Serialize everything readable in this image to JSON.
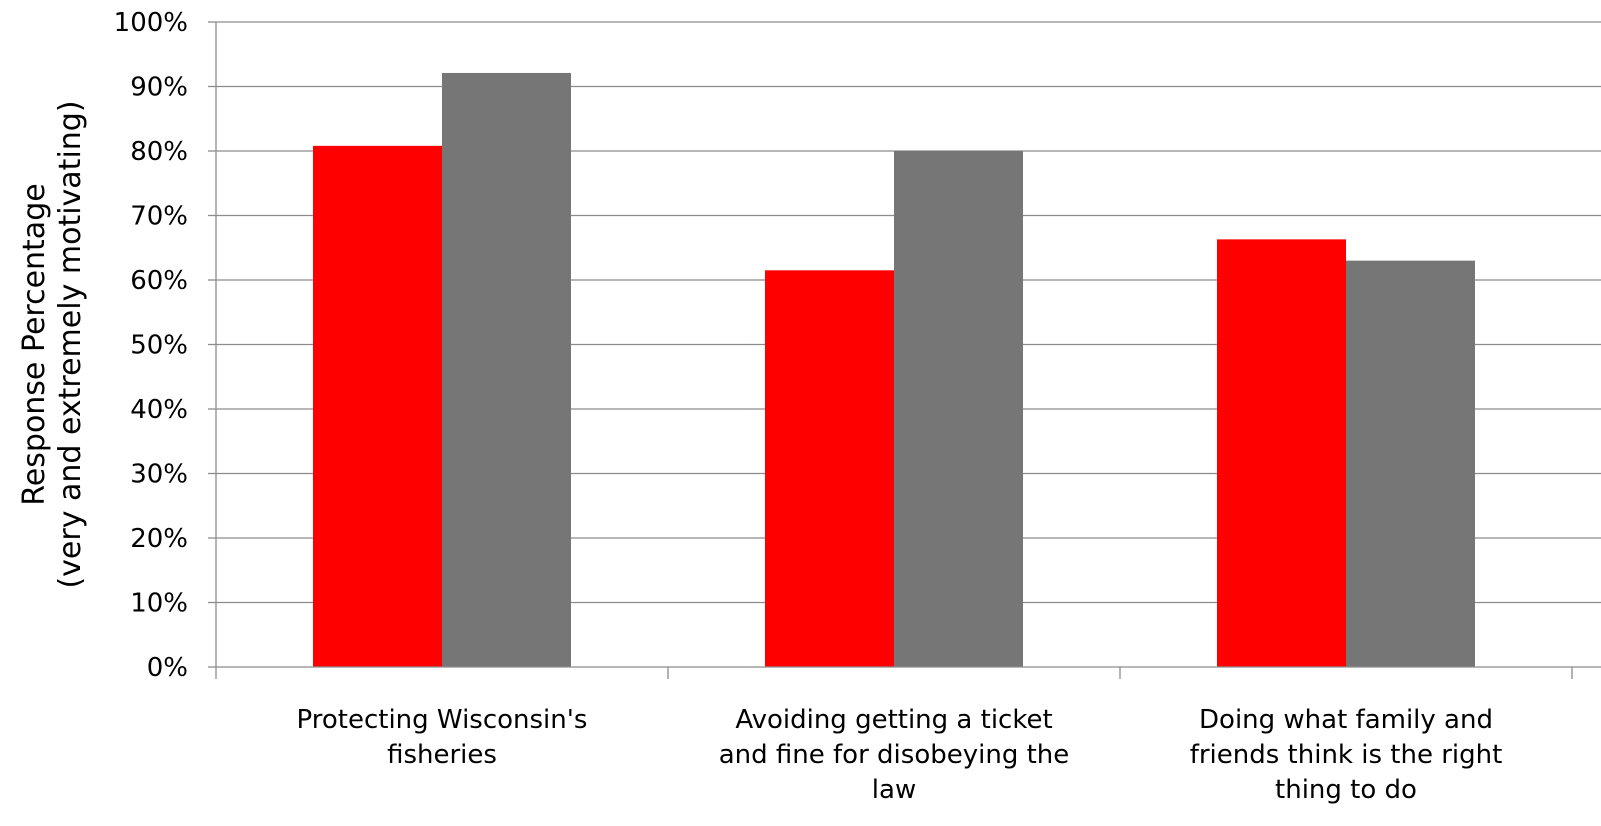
{
  "chart_data": {
    "type": "bar",
    "categories": [
      [
        "Protecting Wisconsin's",
        "fisheries"
      ],
      [
        "Avoiding getting a ticket",
        "and fine for disobeying the",
        "law"
      ],
      [
        "Doing what family and",
        "friends think is the right",
        "thing to do"
      ]
    ],
    "series": [
      {
        "values": [
          80.8,
          61.5,
          66.3
        ],
        "color": "#ff0000"
      },
      {
        "values": [
          92.1,
          80.0,
          63.0
        ],
        "color": "#767676"
      }
    ],
    "ylabel": [
      "Response Percentage",
      "(very and extremely motivating)"
    ],
    "ylim": [
      0,
      100
    ],
    "yticks": [
      0,
      10,
      20,
      30,
      40,
      50,
      60,
      70,
      80,
      90,
      100
    ],
    "ytick_labels": [
      "0%",
      "10%",
      "20%",
      "30%",
      "40%",
      "50%",
      "60%",
      "70%",
      "80%",
      "90%",
      "100%"
    ],
    "grid": true,
    "legend": "none"
  }
}
